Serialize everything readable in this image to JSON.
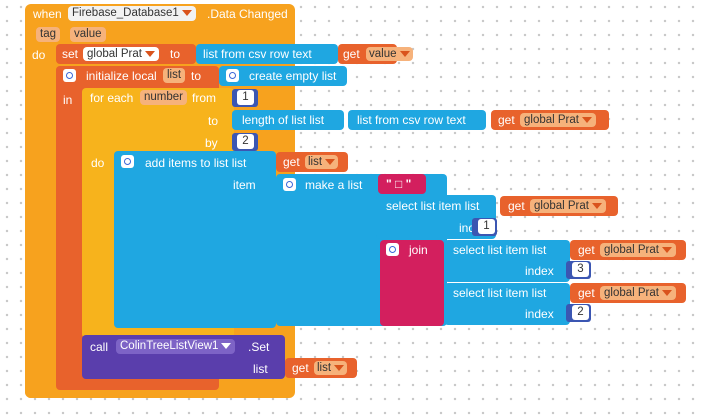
{
  "event": {
    "when": "when",
    "component": "Firebase_Database1",
    "event_name": ".Data Changed",
    "param_tag": "tag",
    "param_value": "value",
    "do": "do"
  },
  "set_block": {
    "set": "set",
    "var": "global Prat",
    "to": "to",
    "csv_call": "list from csv row  text",
    "get": "get",
    "get_var": "value"
  },
  "init_local": {
    "label": "initialize local",
    "var": "list",
    "to": "to",
    "create_empty": "create empty list",
    "in": "in"
  },
  "for_each": {
    "label": "for each",
    "var": "number",
    "from": "from",
    "from_val": "1",
    "to": "to",
    "length_label": "length of list  list",
    "csv_label": "list from csv row  text",
    "get": "get",
    "get_var": "global Prat",
    "by": "by",
    "by_val": "2",
    "do": "do"
  },
  "add_items": {
    "label": "add items to list  list",
    "get": "get",
    "list_var": "list",
    "item": "item",
    "make_list": "make a list",
    "string_val": "\" □ \"",
    "select1": "select list item  list",
    "get1": "get",
    "var1": "global Prat",
    "index1_label": "index",
    "index1_val": "1",
    "join": "join",
    "select2": "select list item  list",
    "get2": "get",
    "var2": "global Prat",
    "index2_label": "index",
    "index2_val": "3",
    "select3": "select list item  list",
    "get3": "get",
    "var3": "global Prat",
    "index3_label": "index",
    "index3_val": "2"
  },
  "call_block": {
    "call": "call",
    "component": "ColinTreeListView1",
    "method": ".Set",
    "list_label": "list",
    "get": "get",
    "get_var": "list"
  },
  "colors": {
    "event": "#f7a21e",
    "variables": "#e8622c",
    "lists": "#1fa7e1",
    "control": "#f7b31c",
    "math": "#3b56b2",
    "text": "#d31f5e",
    "component": "#5a3eac"
  }
}
